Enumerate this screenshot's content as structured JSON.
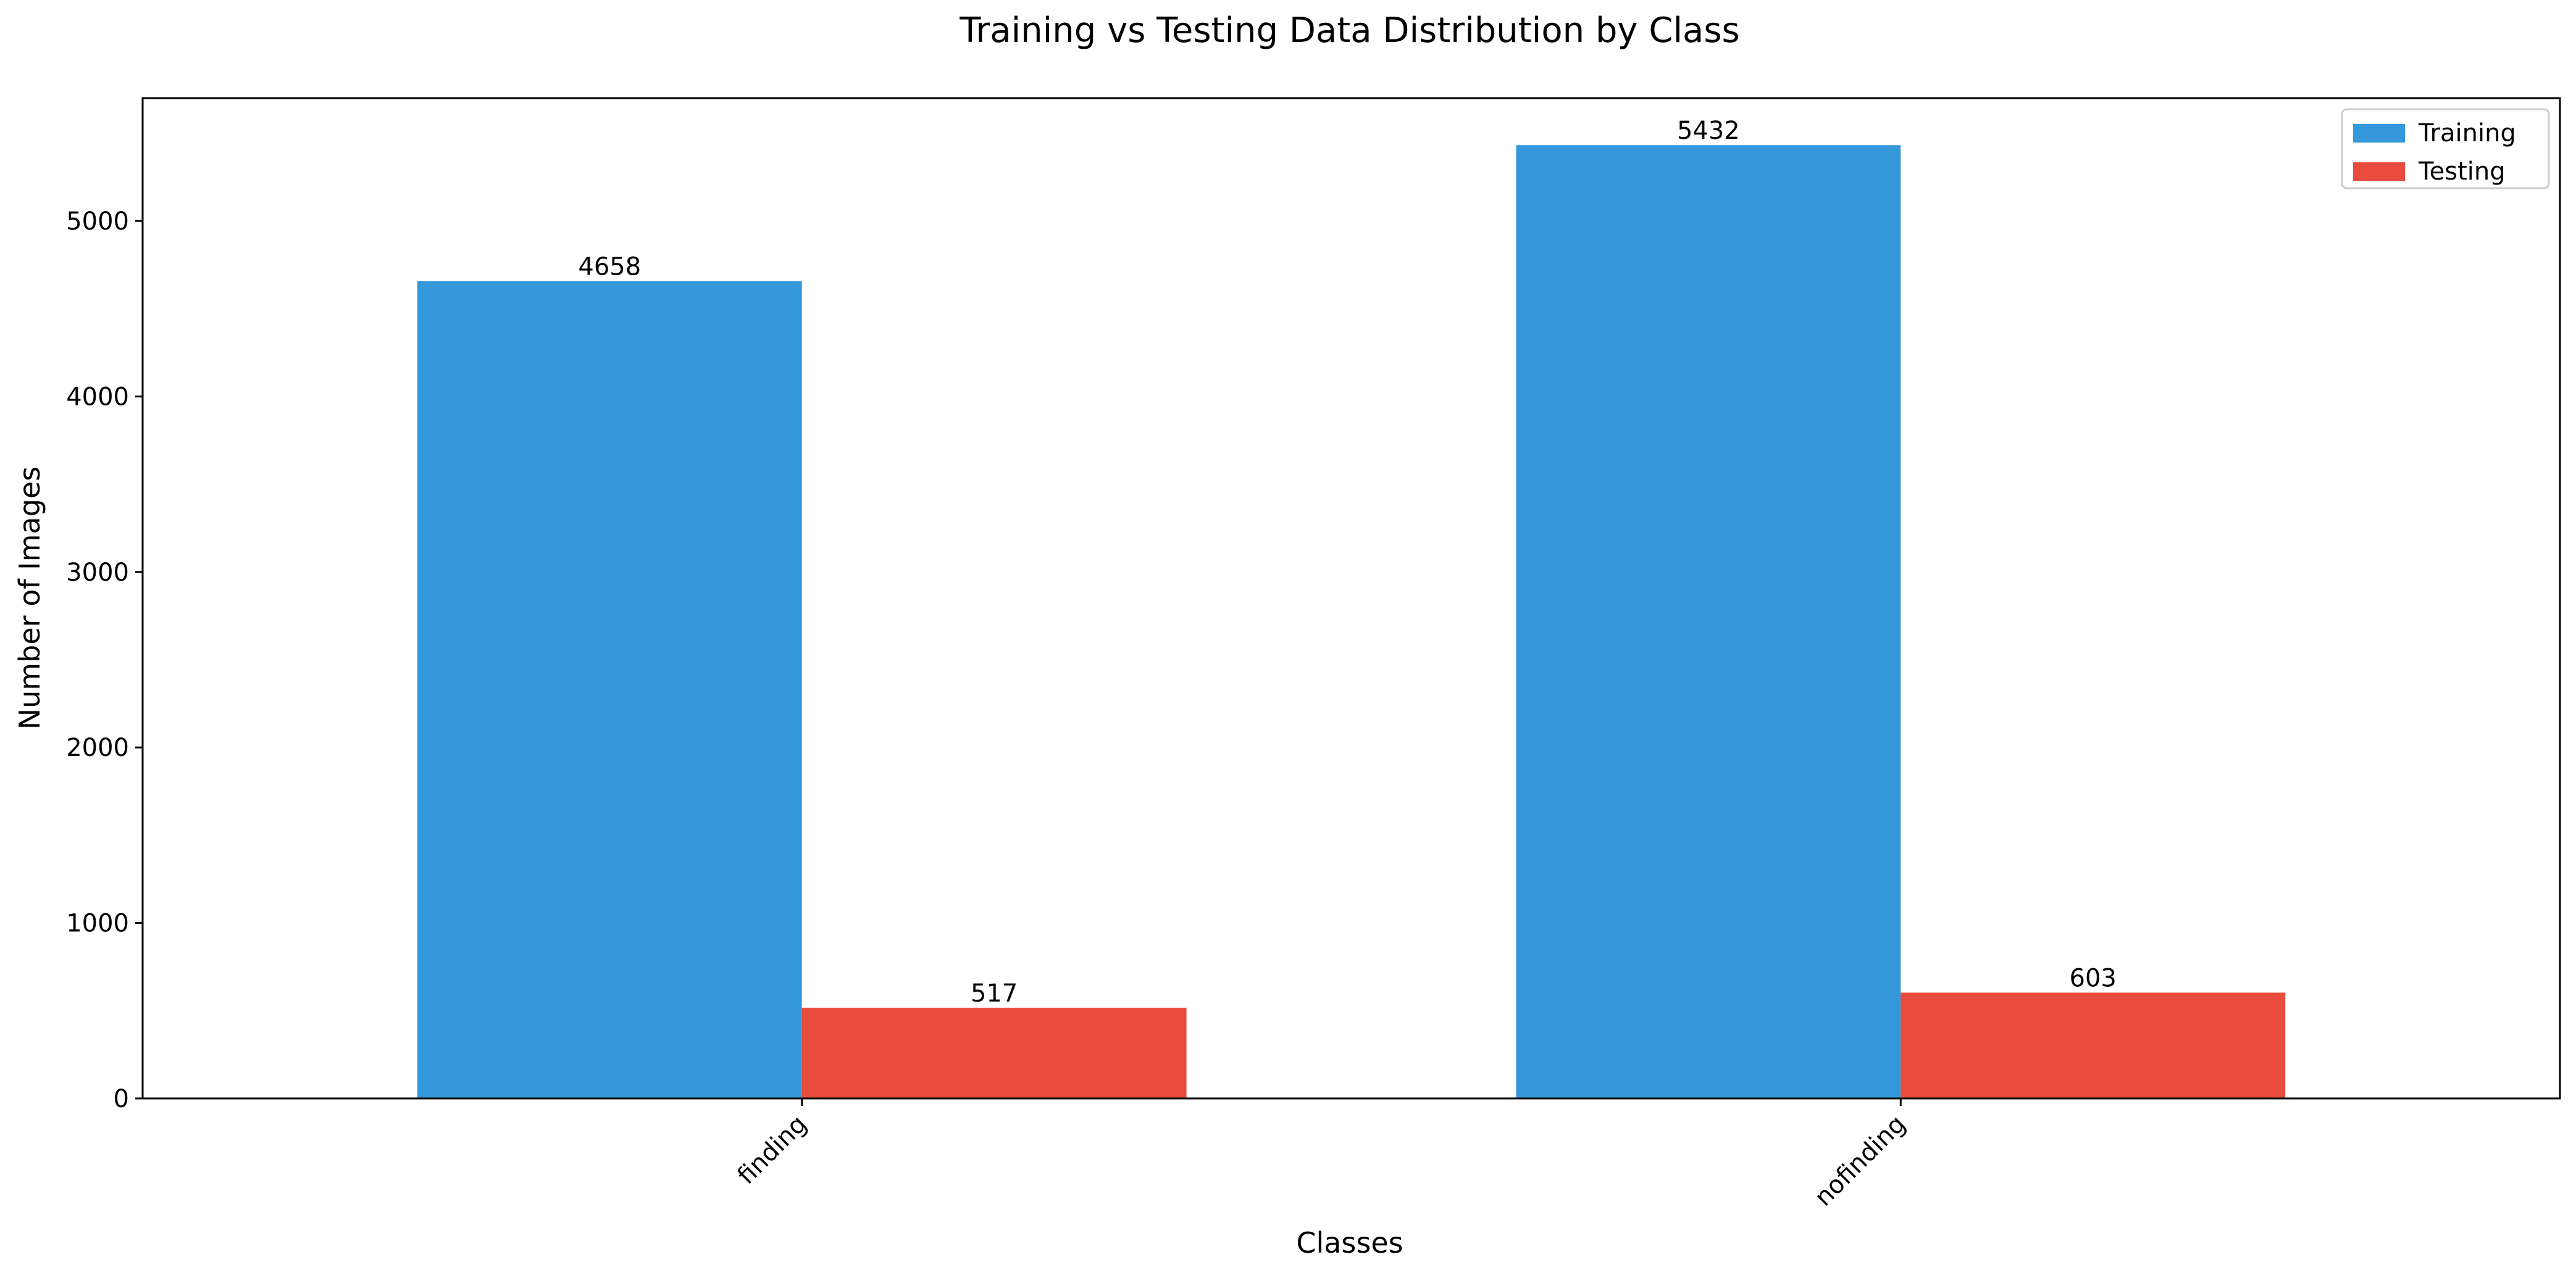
{
  "chart_data": {
    "type": "bar",
    "title": "Training vs Testing Data Distribution by Class",
    "xlabel": "Classes",
    "ylabel": "Number of Images",
    "categories": [
      "finding",
      "nofinding"
    ],
    "series": [
      {
        "name": "Training",
        "values": [
          4658,
          5432
        ],
        "color": "#3598db"
      },
      {
        "name": "Testing",
        "values": [
          517,
          603
        ],
        "color": "#e74c3c"
      }
    ],
    "ylim": [
      0,
      5700
    ],
    "yticks": [
      0,
      1000,
      2000,
      3000,
      4000,
      5000
    ],
    "grid": false,
    "legend": "top-right",
    "data_labels": true,
    "x_tick_rotation_deg": 45
  }
}
